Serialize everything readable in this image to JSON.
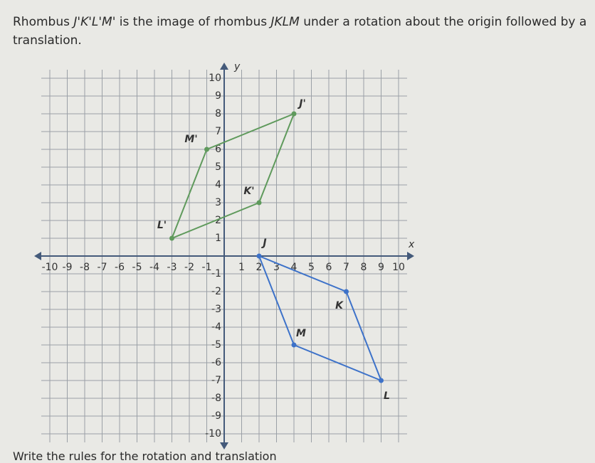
{
  "question": {
    "lead": "Rhombus",
    "image_name": "J'K'L'M'",
    "text": "is the image of rhombus",
    "pre_name": "JKLM",
    "rest": "under a rotation about the origin followed by a translation."
  },
  "graph": {
    "x_label": "x",
    "y_label": "y",
    "xlim": [
      -10,
      10
    ],
    "ylim": [
      -10,
      10
    ],
    "xticks": [
      -10,
      -9,
      -8,
      -7,
      -6,
      -5,
      -4,
      -3,
      -2,
      -1,
      1,
      2,
      3,
      4,
      5,
      6,
      7,
      8,
      9,
      10
    ],
    "yticks": [
      -10,
      -9,
      -8,
      -7,
      -6,
      -5,
      -4,
      -3,
      -2,
      -1,
      1,
      2,
      3,
      4,
      5,
      6,
      7,
      8,
      9,
      10
    ],
    "grid": true,
    "polygons": [
      {
        "color": "#3d72c9",
        "vertices": [
          {
            "label": "J",
            "x": 2,
            "y": 0
          },
          {
            "label": "K",
            "x": 7,
            "y": -2
          },
          {
            "label": "L",
            "x": 9,
            "y": -7
          },
          {
            "label": "M",
            "x": 4,
            "y": -5
          }
        ]
      },
      {
        "color": "#5f9a5c",
        "vertices": [
          {
            "label": "J'",
            "x": 4,
            "y": 8
          },
          {
            "label": "K'",
            "x": 2,
            "y": 3
          },
          {
            "label": "L'",
            "x": -3,
            "y": 1
          },
          {
            "label": "M'",
            "x": -1,
            "y": 6
          }
        ]
      }
    ]
  },
  "footer": "Write the rules for the rotation and translation"
}
